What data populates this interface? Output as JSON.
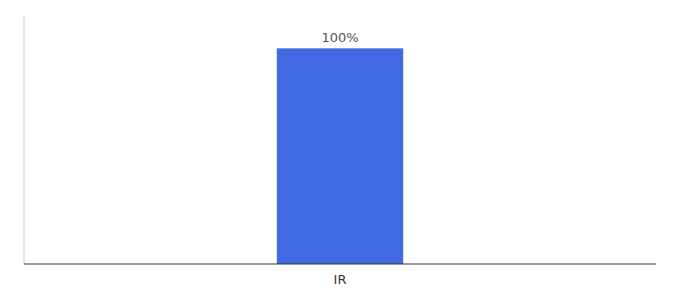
{
  "chart_data": {
    "type": "bar",
    "categories": [
      "IR"
    ],
    "values": [
      100
    ],
    "value_labels": [
      "100%"
    ],
    "data_labels": true,
    "color": "#4169e1",
    "ylim": [
      0,
      115
    ],
    "tick_labels": "x",
    "grid": false
  }
}
